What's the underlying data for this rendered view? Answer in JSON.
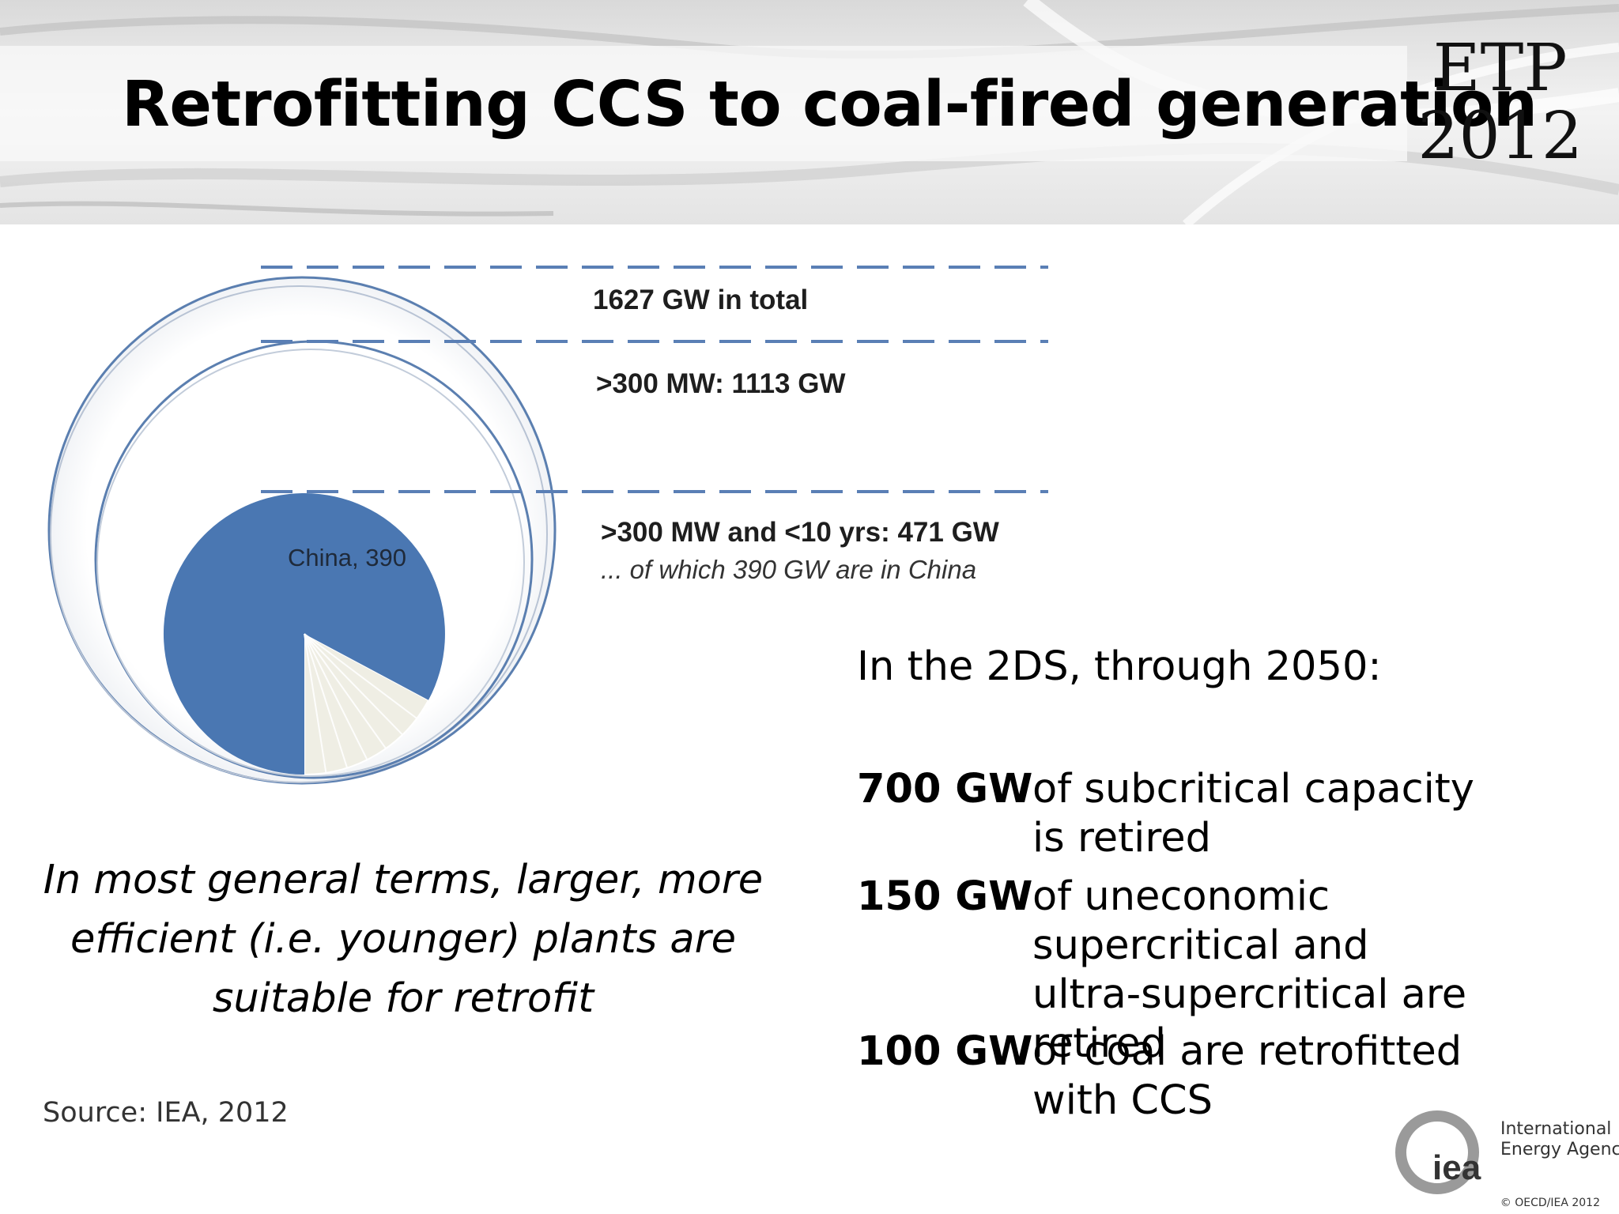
{
  "slide": {
    "title": "Retrofitting CCS to coal-fired generation",
    "logo_etp": {
      "line1": "ETP",
      "line2": "2012"
    },
    "figure": {
      "labels": {
        "total": "1627 GW in total",
        "large": ">300 MW: 1113  GW",
        "young": ">300 MW and <10 yrs: 471 GW",
        "young_note": "... of which 390 GW are in China",
        "china": "China, 390"
      },
      "values": {
        "total_gw": 1627,
        "large_gw": 1113,
        "young_gw": 471,
        "china_gw": 390
      },
      "colors": {
        "china_fill": "#4a77b2",
        "rest_fill": "#efeee4",
        "circle_line": "#5b7fb0",
        "dash": "#5a7fb5"
      }
    },
    "intro": "In the 2DS, through 2050:",
    "stats": [
      {
        "amount": "700 GW",
        "text": "of subcritical capacity is retired"
      },
      {
        "amount": "150 GW",
        "text": "of uneconomic supercritical and ultra-supercritical are retired"
      },
      {
        "amount": "100 GW",
        "text": "of coal are retrofitted with CCS"
      }
    ],
    "quote": "In most general terms, larger, more efficient (i.e. younger) plants are suitable for retrofit",
    "source": "Source: IEA, 2012",
    "iea_logo": {
      "mark": "iea",
      "name_line1": "International",
      "name_line2": "Energy Agency"
    },
    "copyright": "© OECD/IEA 2012"
  }
}
